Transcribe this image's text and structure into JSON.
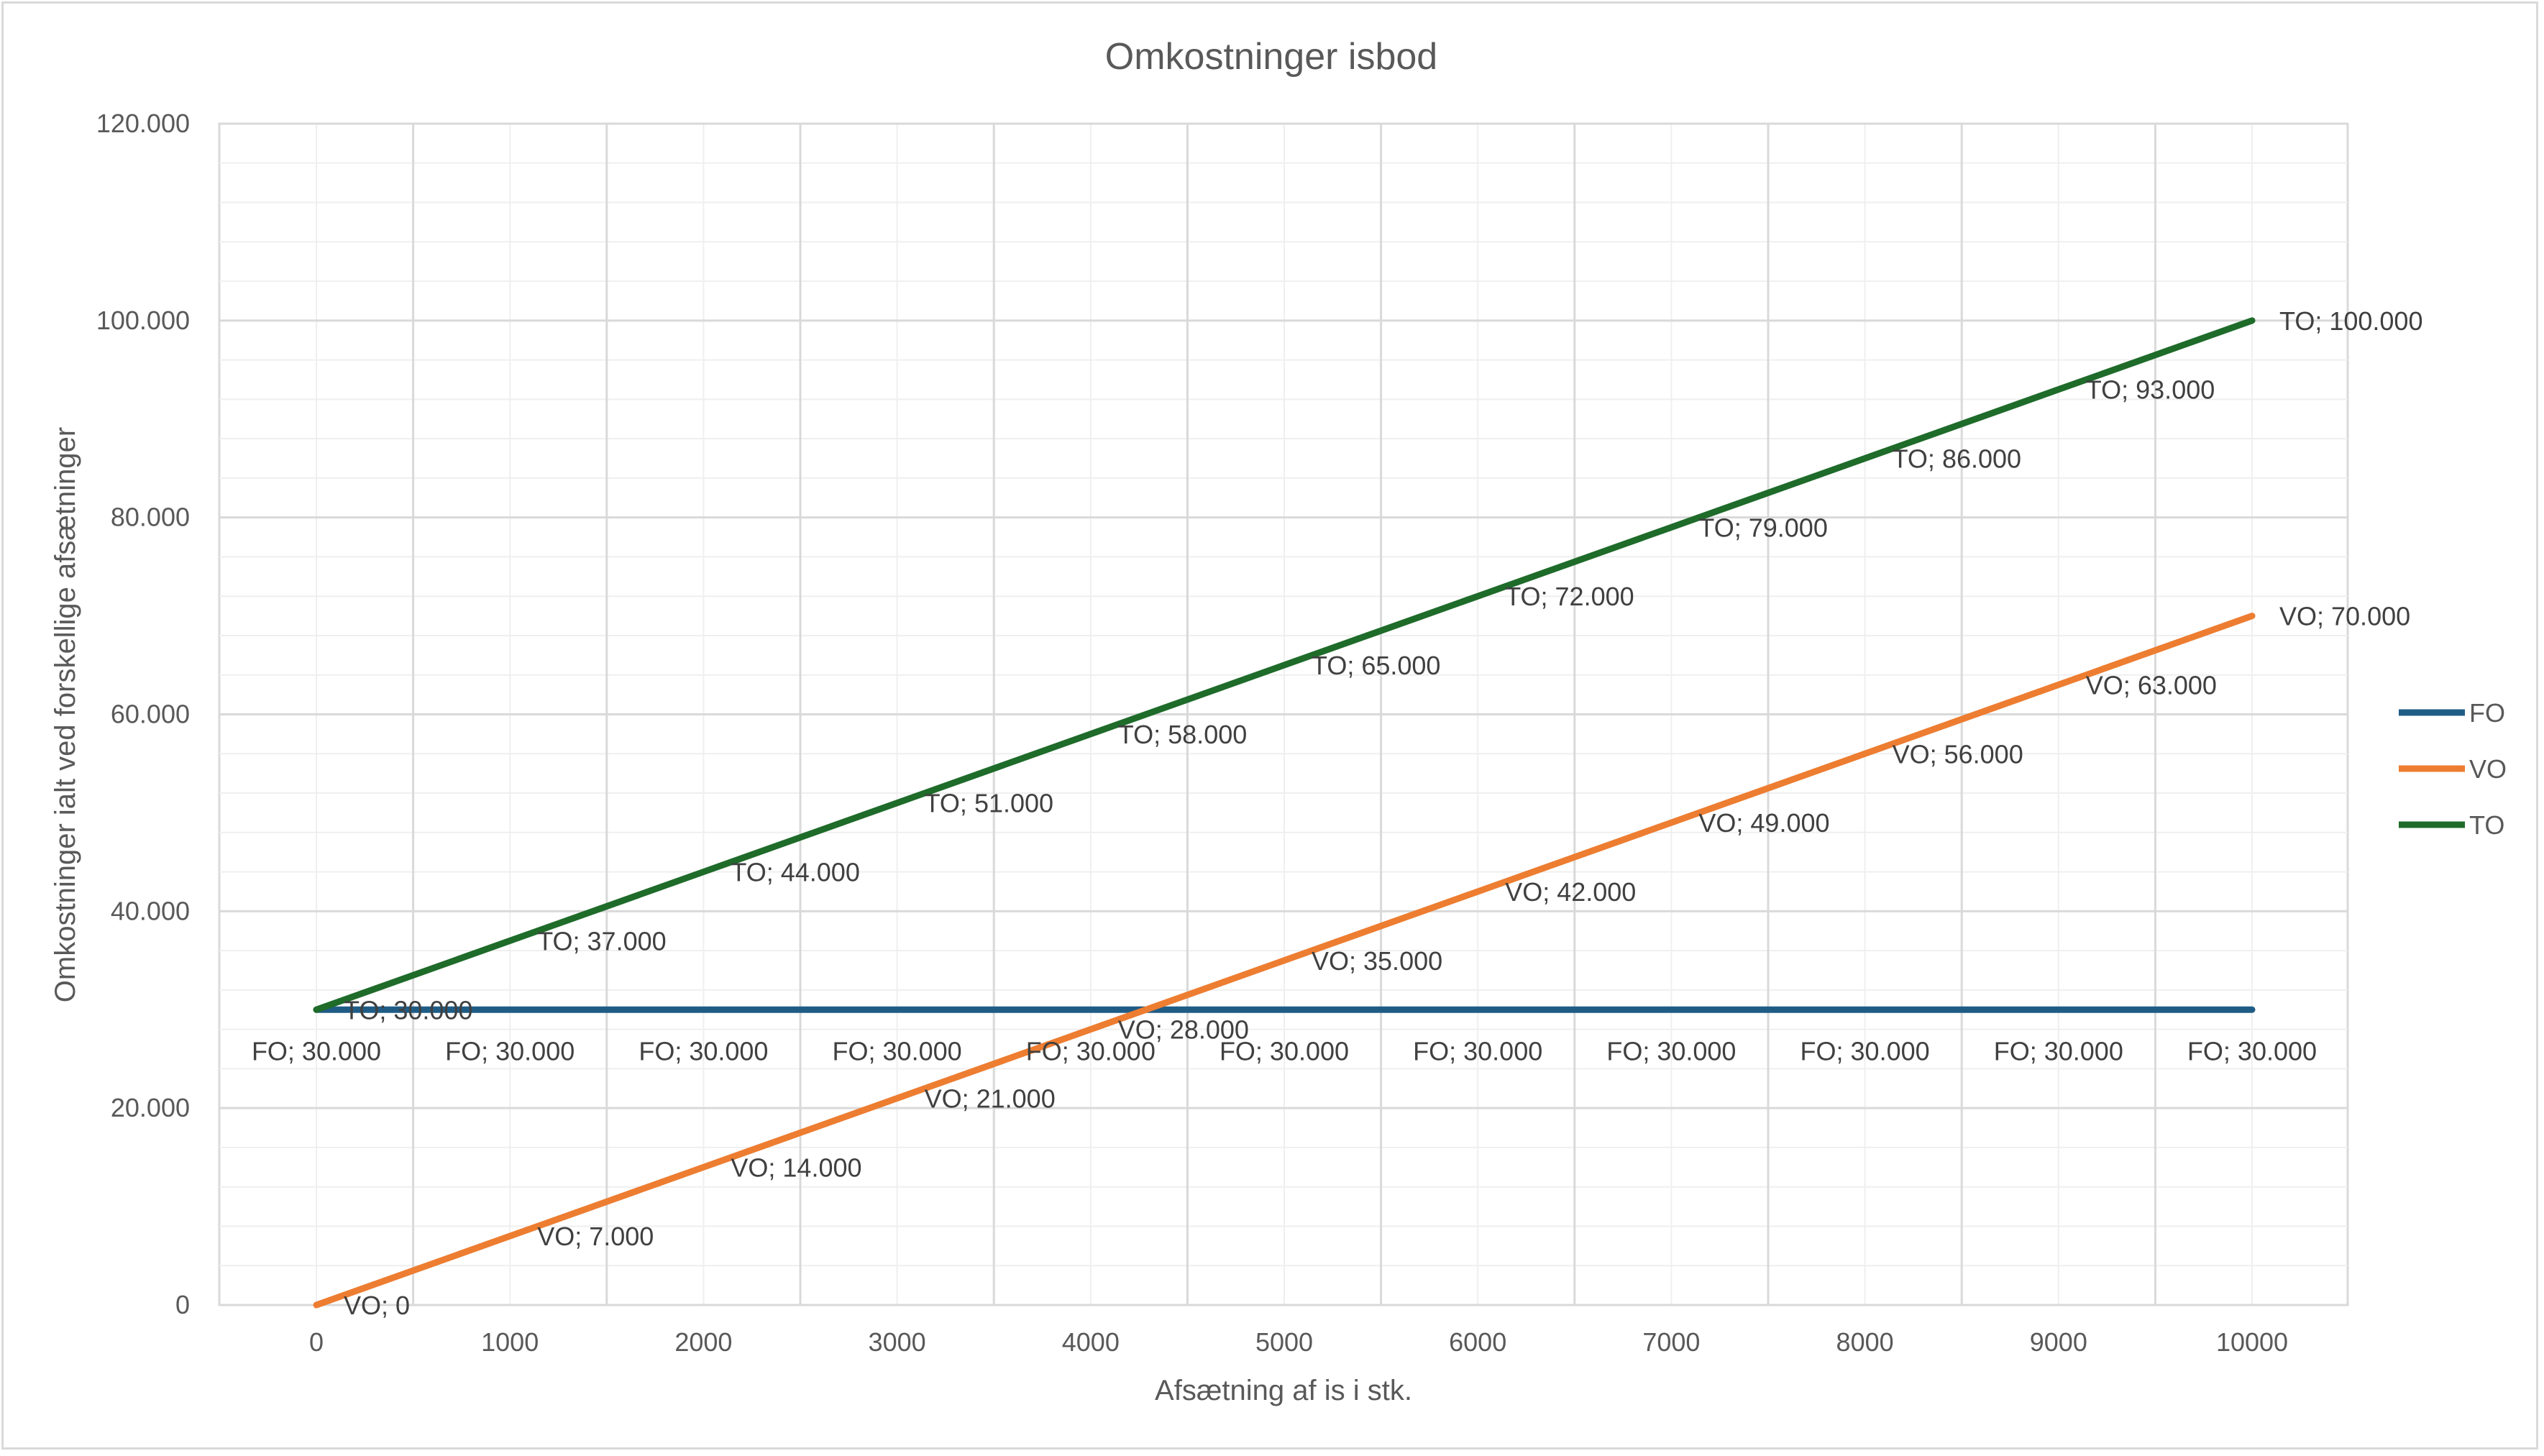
{
  "chart_data": {
    "type": "line",
    "title": "Omkostninger isbod",
    "xlabel": "Afsætning af is i stk.",
    "ylabel": "Omkostninger ialt ved forskellige afsætninger",
    "x": [
      0,
      1000,
      2000,
      3000,
      4000,
      5000,
      6000,
      7000,
      8000,
      9000,
      10000
    ],
    "x_tick_labels": [
      "0",
      "1000",
      "2000",
      "3000",
      "4000",
      "5000",
      "6000",
      "7000",
      "8000",
      "9000",
      "10000"
    ],
    "ylim": [
      0,
      120000
    ],
    "y_ticks": [
      0,
      20000,
      40000,
      60000,
      80000,
      100000,
      120000
    ],
    "y_tick_labels": [
      "0",
      "20.000",
      "40.000",
      "60.000",
      "80.000",
      "100.000",
      "120.000"
    ],
    "grid": true,
    "legend_position": "right",
    "series": [
      {
        "name": "FO",
        "color": "#1f5c85",
        "label_position": "below",
        "values": [
          30000,
          30000,
          30000,
          30000,
          30000,
          30000,
          30000,
          30000,
          30000,
          30000,
          30000
        ],
        "data_labels": [
          "FO; 30.000",
          "FO; 30.000",
          "FO; 30.000",
          "FO; 30.000",
          "FO; 30.000",
          "FO; 30.000",
          "FO; 30.000",
          "FO; 30.000",
          "FO; 30.000",
          "FO; 30.000",
          "FO; 30.000"
        ]
      },
      {
        "name": "VO",
        "color": "#ed7d31",
        "label_position": "right",
        "values": [
          0,
          7000,
          14000,
          21000,
          28000,
          35000,
          42000,
          49000,
          56000,
          63000,
          70000
        ],
        "data_labels": [
          "VO; 0",
          "VO; 7.000",
          "VO; 14.000",
          "VO; 21.000",
          "VO; 28.000",
          "VO; 35.000",
          "VO; 42.000",
          "VO; 49.000",
          "VO; 56.000",
          "VO; 63.000",
          "VO; 70.000"
        ]
      },
      {
        "name": "TO",
        "color": "#1e6b2a",
        "label_position": "right",
        "values": [
          30000,
          37000,
          44000,
          51000,
          58000,
          65000,
          72000,
          79000,
          86000,
          93000,
          100000
        ],
        "data_labels": [
          "TO; 30.000",
          "TO; 37.000",
          "TO; 44.000",
          "TO; 51.000",
          "TO; 58.000",
          "TO; 65.000",
          "TO; 72.000",
          "TO; 79.000",
          "TO; 86.000",
          "TO; 93.000",
          "TO; 100.000"
        ]
      }
    ]
  }
}
